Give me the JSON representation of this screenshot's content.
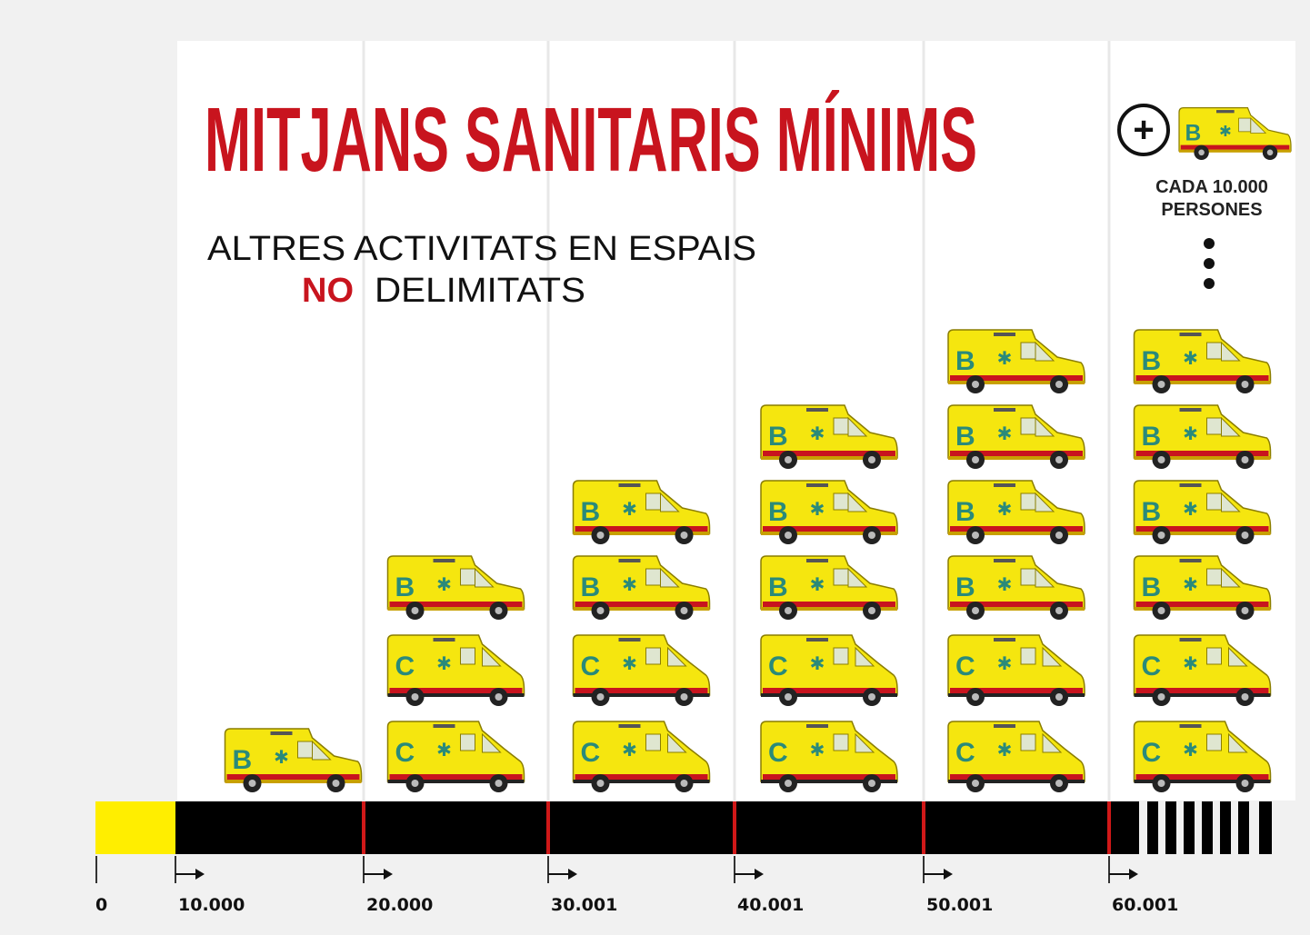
{
  "title": "MITJANS SANITARIS MÍNIMS",
  "subtitle": {
    "line1": "ALTRES ACTIVITATS EN ESPAIS",
    "emphasis": "NO",
    "line2": "DELIMITATS"
  },
  "note": {
    "symbol": "+",
    "van": "B",
    "line1": "CADA 10.000",
    "line2": "PERSONES"
  },
  "axis": {
    "start": "0",
    "columns": [
      {
        "label": "10.000",
        "vans": [
          "B"
        ]
      },
      {
        "label": "20.000",
        "vans": [
          "C",
          "C",
          "B"
        ]
      },
      {
        "label": "30.001",
        "vans": [
          "C",
          "C",
          "B",
          "B"
        ]
      },
      {
        "label": "40.001",
        "vans": [
          "C",
          "C",
          "B",
          "B",
          "B"
        ]
      },
      {
        "label": "50.001",
        "vans": [
          "C",
          "C",
          "B",
          "B",
          "B",
          "B"
        ]
      },
      {
        "label": "60.001",
        "vans": [
          "C",
          "C",
          "B",
          "B",
          "B",
          "B"
        ]
      }
    ]
  }
}
